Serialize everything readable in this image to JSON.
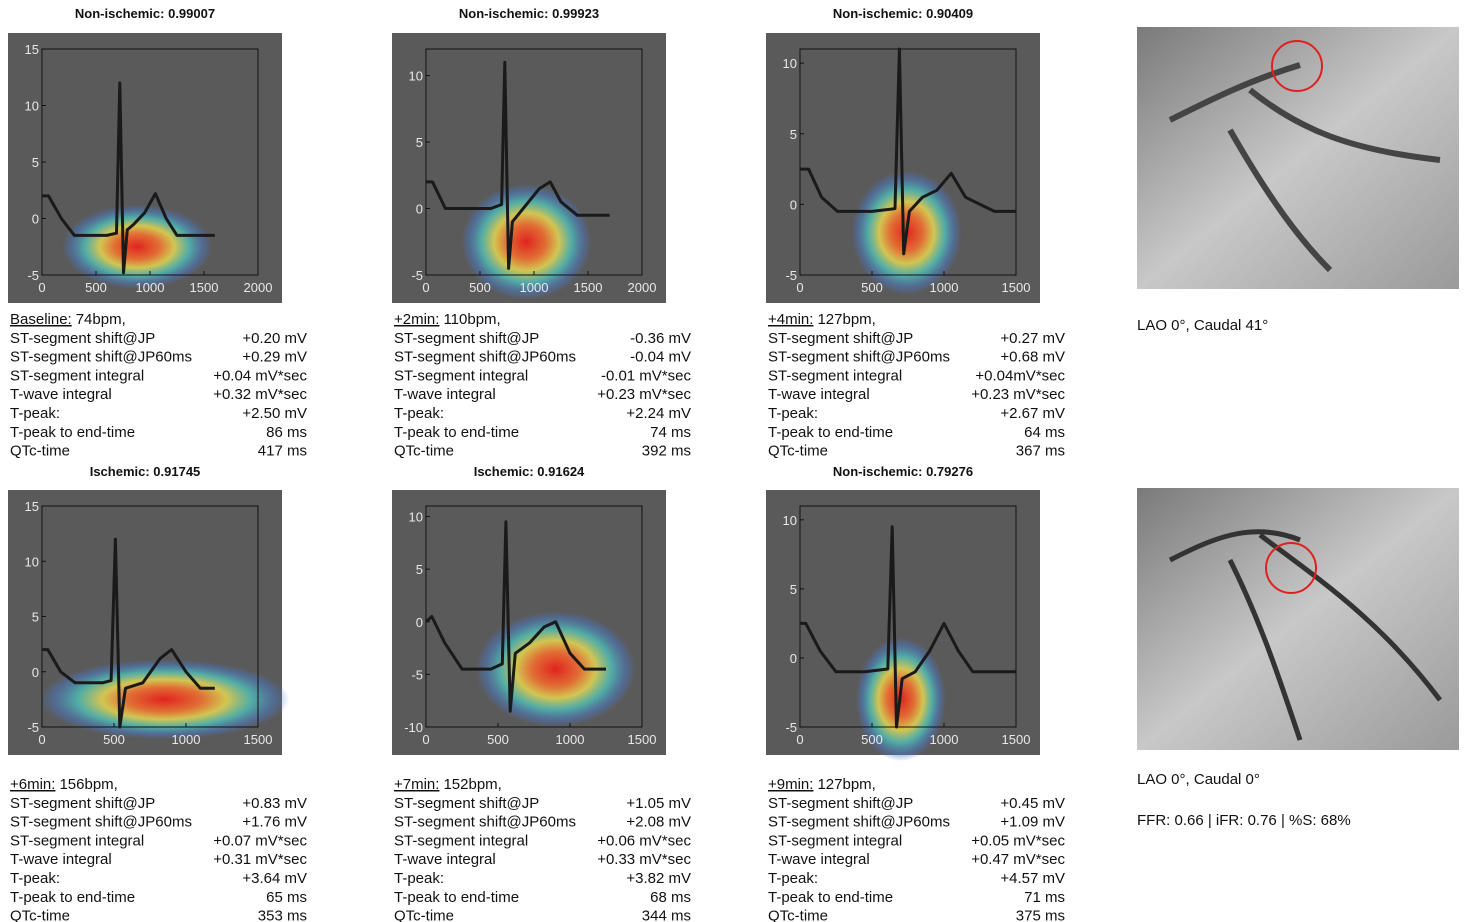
{
  "panels": [
    {
      "title": "Non-ischemic:  0.99007",
      "xlim": [
        0,
        2000
      ],
      "xticks": [
        0,
        500,
        1000,
        1500,
        2000
      ],
      "ylim": [
        -5,
        15
      ],
      "yticks": [
        -5,
        0,
        5,
        10,
        15
      ],
      "ecg": {
        "x": [
          0,
          60,
          180,
          300,
          600,
          690,
          720,
          755,
          790,
          850,
          950,
          1050,
          1150,
          1250,
          1600
        ],
        "y": [
          2,
          2,
          0,
          -1.5,
          -1.5,
          -1.3,
          12,
          -4.8,
          -1,
          -0.5,
          0.5,
          2.2,
          0,
          -1.5,
          -1.5
        ]
      },
      "heat": {
        "x": 880,
        "y": -2.5
      },
      "stage": "Baseline:",
      "rate": "74bpm,",
      "rows": [
        [
          "ST-segment shift@JP",
          "+0.20 mV"
        ],
        [
          "ST-segment shift@JP60ms",
          "+0.29 mV"
        ],
        [
          "ST-segment integral",
          "+0.04 mV*sec"
        ],
        [
          "T-wave integral",
          "+0.32 mV*sec"
        ],
        [
          "T-peak:",
          "+2.50 mV"
        ],
        [
          "T-peak to end-time",
          "86 ms"
        ],
        [
          "QTc-time",
          "417 ms"
        ]
      ]
    },
    {
      "title": "Non-ischemic:  0.99923",
      "xlim": [
        0,
        2000
      ],
      "xticks": [
        0,
        500,
        1000,
        1500,
        2000
      ],
      "ylim": [
        -5,
        12
      ],
      "yticks": [
        -5,
        0,
        5,
        10
      ],
      "ecg": {
        "x": [
          0,
          60,
          180,
          300,
          600,
          700,
          730,
          765,
          800,
          900,
          1050,
          1150,
          1250,
          1400,
          1700
        ],
        "y": [
          2,
          2,
          0,
          0,
          0,
          0.3,
          11,
          -4.5,
          -1,
          0,
          1.5,
          2,
          0.5,
          -0.5,
          -0.5
        ]
      },
      "heat": {
        "x": 930,
        "y": -2.5
      },
      "stage": "+2min:",
      "rate": "110bpm,",
      "rows": [
        [
          "ST-segment shift@JP",
          "-0.36 mV"
        ],
        [
          "ST-segment shift@JP60ms",
          "-0.04 mV"
        ],
        [
          "ST-segment integral",
          "-0.01 mV*sec"
        ],
        [
          "T-wave integral",
          "+0.23 mV*sec"
        ],
        [
          "T-peak:",
          "+2.24 mV"
        ],
        [
          "T-peak to end-time",
          "74 ms"
        ],
        [
          "QTc-time",
          "392 ms"
        ]
      ]
    },
    {
      "title": "Non-ischemic:  0.90409",
      "xlim": [
        0,
        1500
      ],
      "xticks": [
        0,
        500,
        1000,
        1500
      ],
      "ylim": [
        -5,
        11
      ],
      "yticks": [
        -5,
        0,
        5,
        10
      ],
      "ecg": {
        "x": [
          0,
          60,
          150,
          260,
          500,
          660,
          690,
          720,
          760,
          850,
          950,
          1050,
          1150,
          1350,
          1500
        ],
        "y": [
          2.5,
          2.5,
          0.5,
          -0.5,
          -0.5,
          -0.3,
          11,
          -3.5,
          -0.5,
          0.5,
          1,
          2.2,
          0.5,
          -0.5,
          -0.5
        ]
      },
      "heat": {
        "x": 740,
        "y": -2
      },
      "stage": "+4min:",
      "rate": "127bpm,",
      "rows": [
        [
          "ST-segment shift@JP",
          "+0.27 mV"
        ],
        [
          "ST-segment shift@JP60ms",
          "+0.68 mV"
        ],
        [
          "ST-segment integral",
          "+0.04mV*sec"
        ],
        [
          "T-wave integral",
          "+0.23 mV*sec"
        ],
        [
          "T-peak:",
          "+2.67 mV"
        ],
        [
          "T-peak to end-time",
          "64 ms"
        ],
        [
          "QTc-time",
          "367 ms"
        ]
      ]
    },
    {
      "title": "Ischemic:  0.91745",
      "xlim": [
        0,
        1500
      ],
      "xticks": [
        0,
        500,
        1000,
        1500
      ],
      "ylim": [
        -5,
        15
      ],
      "yticks": [
        -5,
        0,
        5,
        10,
        15
      ],
      "ecg": {
        "x": [
          0,
          40,
          130,
          230,
          420,
          480,
          510,
          540,
          580,
          700,
          820,
          900,
          1000,
          1100,
          1200
        ],
        "y": [
          2,
          2,
          0,
          -1,
          -1,
          -0.8,
          12,
          -5,
          -1.5,
          -1,
          1.2,
          2,
          0,
          -1.5,
          -1.5
        ]
      },
      "heat": {
        "x": 850,
        "y": -2.5
      },
      "stage": "+6min:",
      "rate": "156bpm,",
      "rows": [
        [
          "ST-segment shift@JP",
          "+0.83 mV"
        ],
        [
          "ST-segment shift@JP60ms",
          "+1.76 mV"
        ],
        [
          "ST-segment integral",
          "+0.07 mV*sec"
        ],
        [
          "T-wave integral",
          "+0.31 mV*sec"
        ],
        [
          "T-peak:",
          "+3.64 mV"
        ],
        [
          "T-peak to end-time",
          "65 ms"
        ],
        [
          "QTc-time",
          "353 ms"
        ]
      ]
    },
    {
      "title": "Ischemic:  0.91624",
      "xlim": [
        0,
        1500
      ],
      "xticks": [
        0,
        500,
        1000,
        1500
      ],
      "ylim": [
        -10,
        11
      ],
      "yticks": [
        -10,
        -5,
        0,
        5,
        10
      ],
      "ecg": {
        "x": [
          0,
          40,
          130,
          250,
          450,
          530,
          555,
          585,
          620,
          720,
          820,
          900,
          1000,
          1100,
          1250
        ],
        "y": [
          0,
          0.5,
          -2,
          -4.5,
          -4.5,
          -4,
          9.5,
          -8.5,
          -3,
          -2,
          -0.5,
          0,
          -3,
          -4.5,
          -4.5
        ]
      },
      "heat": {
        "x": 900,
        "y": -4.5
      },
      "stage": "+7min:",
      "rate": "152bpm,",
      "rows": [
        [
          "ST-segment shift@JP",
          "+1.05 mV"
        ],
        [
          "ST-segment shift@JP60ms",
          "+2.08 mV"
        ],
        [
          "ST-segment integral",
          "+0.06 mV*sec"
        ],
        [
          "T-wave integral",
          "+0.33 mV*sec"
        ],
        [
          "T-peak:",
          "+3.82 mV"
        ],
        [
          "T-peak to end-time",
          "68 ms"
        ],
        [
          "QTc-time",
          "344 ms"
        ]
      ]
    },
    {
      "title": "Non-ischemic:  0.79276",
      "xlim": [
        0,
        1500
      ],
      "xticks": [
        0,
        500,
        1000,
        1500
      ],
      "ylim": [
        -5,
        11
      ],
      "yticks": [
        -5,
        0,
        5,
        10
      ],
      "ecg": {
        "x": [
          0,
          40,
          140,
          250,
          450,
          610,
          640,
          670,
          710,
          800,
          900,
          1000,
          1100,
          1200,
          1500
        ],
        "y": [
          2.5,
          2.5,
          0.5,
          -1,
          -1,
          -0.8,
          9.5,
          -5,
          -1.5,
          -1,
          0.5,
          2.5,
          0.5,
          -1,
          -1
        ]
      },
      "heat": {
        "x": 700,
        "y": -3
      },
      "stage": "+9min:",
      "rate": "127bpm,",
      "rows": [
        [
          "ST-segment shift@JP",
          "+0.45 mV"
        ],
        [
          "ST-segment shift@JP60ms",
          "+1.09 mV"
        ],
        [
          "ST-segment integral",
          "+0.05 mV*sec"
        ],
        [
          "T-wave integral",
          "+0.47 mV*sec"
        ],
        [
          "T-peak:",
          "+4.57 mV"
        ],
        [
          "T-peak to end-time",
          "71 ms"
        ],
        [
          "QTc-time",
          "375 ms"
        ]
      ]
    }
  ],
  "angiograms": [
    {
      "caption": "LAO 0°, Caudal 41°"
    },
    {
      "caption": "LAO 0°, Caudal 0°"
    }
  ],
  "summary": "FFR: 0.66 | iFR: 0.76 | %S: 68%"
}
